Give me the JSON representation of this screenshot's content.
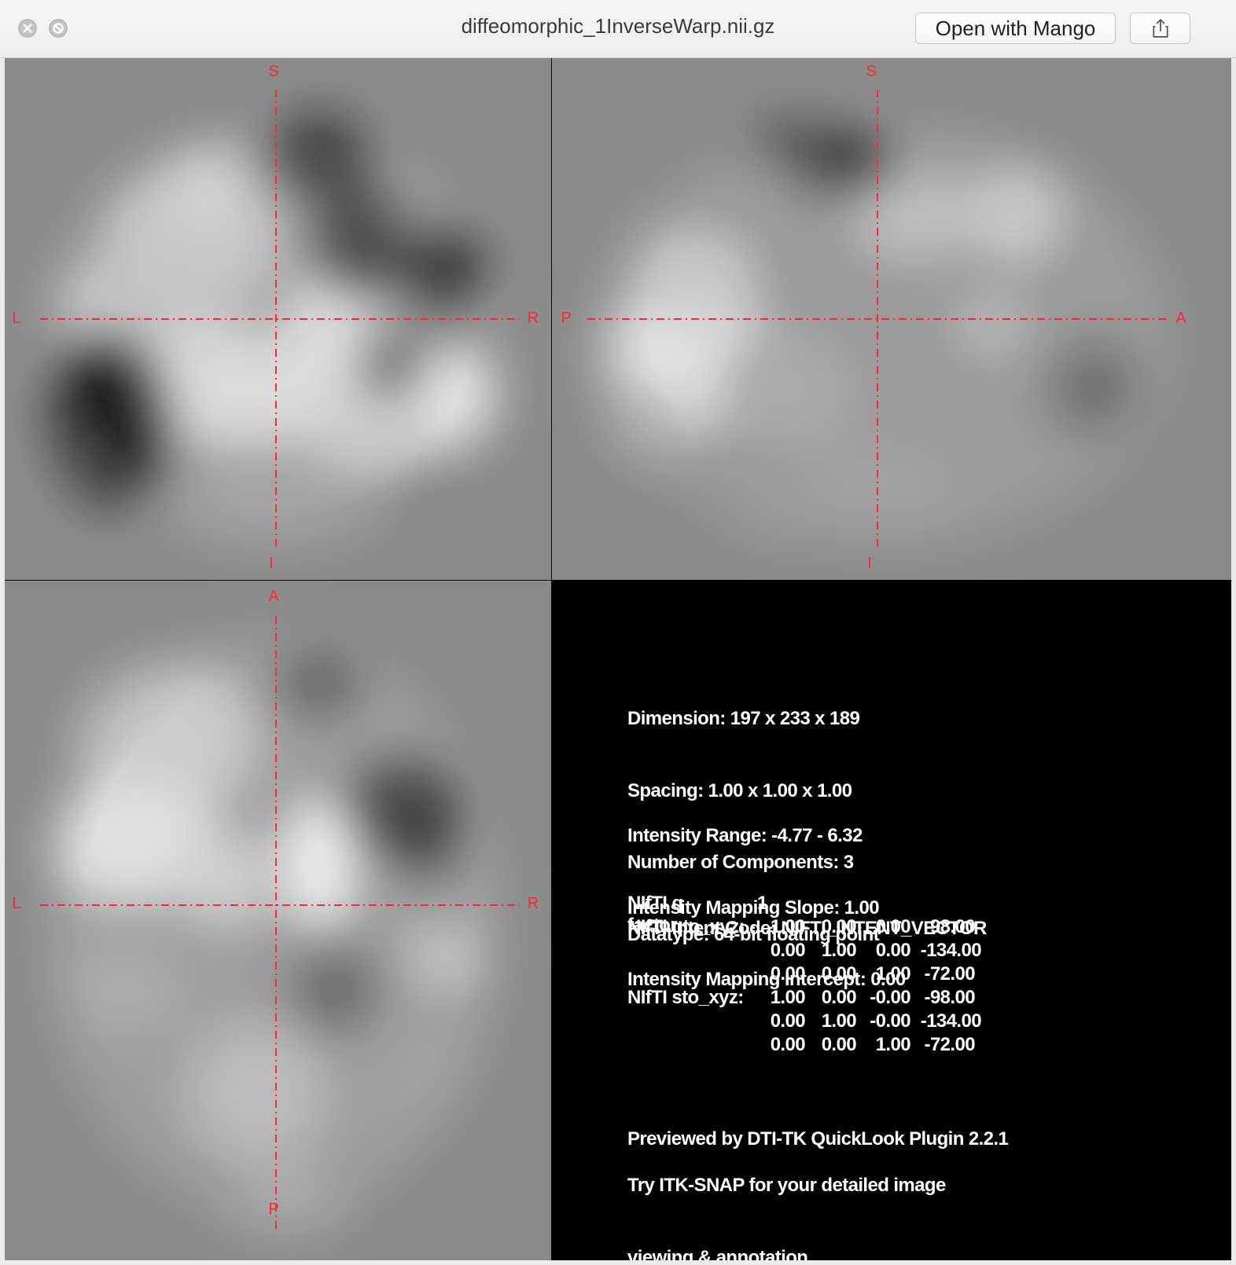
{
  "window": {
    "title": "diffeomorphic_1InverseWarp.nii.gz",
    "open_button_label": "Open with Mango",
    "icons": {
      "close": "close-icon",
      "minimize": "minimize-icon",
      "share": "share-icon"
    }
  },
  "views": {
    "coronal": {
      "top": "S",
      "bottom": "I",
      "left": "L",
      "right": "R"
    },
    "sagittal": {
      "top": "S",
      "bottom": "I",
      "left": "P",
      "right": "A"
    },
    "axial": {
      "top": "A",
      "bottom": "P",
      "left": "L",
      "right": "R"
    },
    "crosshair_color": "#ff2a2a"
  },
  "info": {
    "dimension": "Dimension: 197 x 233 x 189",
    "spacing": "Spacing: 1.00 x 1.00 x 1.00",
    "components": "Number of Components: 3",
    "datatype": "Datatype: 64-bit floating point",
    "intensity_range": "Intensity Range: -4.77 - 6.32",
    "mapping_slope": "Intensity Mapping Slope: 1.00",
    "mapping_intercept": "Intensity Mapping Intercept: 0.00",
    "intent_code": "NIfTI Intent Code: NIFTI_INTENT_VECTOR",
    "q_factor_label": "NIfTI q factor:",
    "q_factor_value": "1",
    "qto_label": "NIfTI qto_xyz:",
    "qto_rows": [
      [
        "1.00",
        "0.00",
        "0.00",
        "-98.00"
      ],
      [
        "0.00",
        "1.00",
        "0.00",
        "-134.00"
      ],
      [
        "0.00",
        "0.00",
        "1.00",
        "-72.00"
      ]
    ],
    "sto_label": "NIfTI sto_xyz:",
    "sto_rows": [
      [
        "1.00",
        "0.00",
        "-0.00",
        "-98.00"
      ],
      [
        "0.00",
        "1.00",
        "-0.00",
        "-134.00"
      ],
      [
        "0.00",
        "0.00",
        "1.00",
        "-72.00"
      ]
    ],
    "previewed_by": "Previewed by DTI-TK QuickLook Plugin 2.2.1",
    "try_line1": "Try ITK-SNAP for your detailed image",
    "try_line2": "viewing & annotation"
  }
}
